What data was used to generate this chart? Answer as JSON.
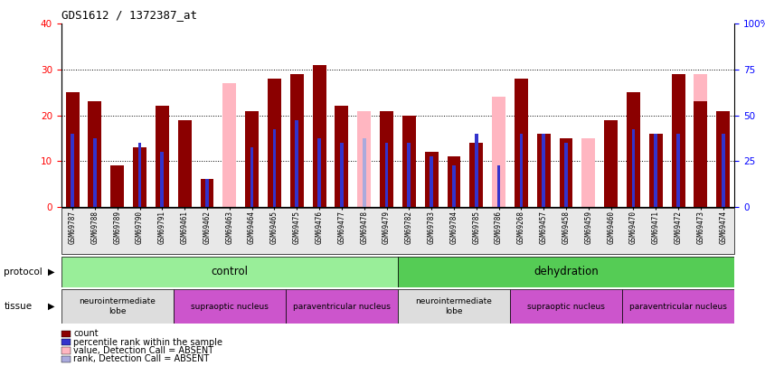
{
  "title": "GDS1612 / 1372387_at",
  "samples": [
    "GSM69787",
    "GSM69788",
    "GSM69789",
    "GSM69790",
    "GSM69791",
    "GSM69461",
    "GSM69462",
    "GSM69463",
    "GSM69464",
    "GSM69465",
    "GSM69475",
    "GSM69476",
    "GSM69477",
    "GSM69478",
    "GSM69479",
    "GSM69782",
    "GSM69783",
    "GSM69784",
    "GSM69785",
    "GSM69786",
    "GSM69268",
    "GSM69457",
    "GSM69458",
    "GSM69459",
    "GSM69460",
    "GSM69470",
    "GSM69471",
    "GSM69472",
    "GSM69473",
    "GSM69474"
  ],
  "count_values": [
    25,
    23,
    9,
    13,
    22,
    19,
    6,
    0,
    21,
    28,
    29,
    31,
    22,
    0,
    21,
    20,
    12,
    11,
    14,
    0,
    28,
    16,
    15,
    0,
    19,
    25,
    16,
    29,
    23,
    21
  ],
  "rank_values": [
    16,
    15,
    0,
    14,
    12,
    0,
    6,
    0,
    13,
    17,
    19,
    15,
    14,
    0,
    14,
    14,
    11,
    9,
    16,
    9,
    16,
    16,
    14,
    0,
    0,
    17,
    16,
    16,
    0,
    16
  ],
  "absent_count": [
    0,
    0,
    0,
    0,
    0,
    0,
    5.5,
    27,
    0,
    0,
    0,
    0,
    0,
    21,
    0,
    0,
    0,
    0,
    0,
    24,
    0,
    0,
    0,
    15,
    0,
    0,
    0,
    0,
    29,
    0
  ],
  "absent_rank": [
    0,
    0,
    0,
    0,
    0,
    0,
    5.5,
    0,
    0,
    0,
    0,
    0,
    0,
    15,
    0,
    0,
    0,
    0,
    0,
    9,
    0,
    0,
    0,
    0,
    0,
    0,
    0,
    0,
    14,
    0
  ],
  "ylim_left": [
    0,
    40
  ],
  "ylim_right": [
    0,
    100
  ],
  "yticks_left": [
    0,
    10,
    20,
    30,
    40
  ],
  "ytick_labels_right": [
    "0",
    "25",
    "50",
    "75",
    "100%"
  ],
  "bar_color_dark_red": "#8B0000",
  "bar_color_blue": "#3333CC",
  "bar_color_pink": "#FFB6C1",
  "bar_color_light_blue": "#AAAADD",
  "protocol_control_color": "#99EE99",
  "protocol_dehydration_color": "#55CC55",
  "tissue_neuro_color": "#DDDDDD",
  "tissue_supraoptic_color": "#CC55CC",
  "tissue_para_color": "#CC55CC",
  "protocol_label": "protocol",
  "tissue_label": "tissue",
  "control_label": "control",
  "dehydration_label": "dehydration",
  "tissue_groups": [
    {
      "label": "neurointermediate\nlobe",
      "color": "#DDDDDD",
      "start": 0,
      "end": 5
    },
    {
      "label": "supraoptic nucleus",
      "color": "#CC55CC",
      "start": 5,
      "end": 10
    },
    {
      "label": "paraventricular nucleus",
      "color": "#CC55CC",
      "start": 10,
      "end": 15
    },
    {
      "label": "neurointermediate\nlobe",
      "color": "#DDDDDD",
      "start": 15,
      "end": 20
    },
    {
      "label": "supraoptic nucleus",
      "color": "#CC55CC",
      "start": 20,
      "end": 25
    },
    {
      "label": "paraventricular nucleus",
      "color": "#CC55CC",
      "start": 25,
      "end": 30
    }
  ],
  "legend_items": [
    {
      "label": "count",
      "color": "#8B0000"
    },
    {
      "label": "percentile rank within the sample",
      "color": "#3333CC"
    },
    {
      "label": "value, Detection Call = ABSENT",
      "color": "#FFB6C1"
    },
    {
      "label": "rank, Detection Call = ABSENT",
      "color": "#AAAADD"
    }
  ],
  "bar_width": 0.6,
  "n_samples": 30
}
